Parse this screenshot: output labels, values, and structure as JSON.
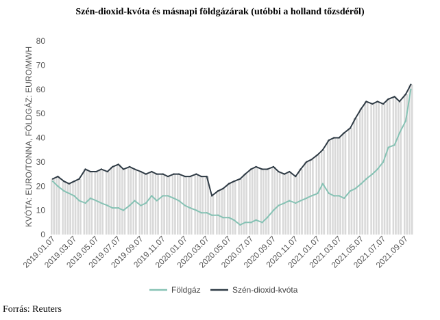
{
  "title": "Szén-dioxid-kvóta és másnapi földgázárak (utóbbi a holland tőzsdéről)",
  "source": "Forrás: Reuters",
  "chart_data": {
    "type": "line",
    "title": "Szén-dioxid-kvóta és másnapi földgázárak (utóbbi a holland tőzsdéről)",
    "ylabel": "KVÓTA: EURO/TONNA, FÖLDGÁZ: EURO/MWH",
    "xlabel": "",
    "ylim": [
      0,
      80
    ],
    "yticks": [
      "0",
      "10",
      "20",
      "30",
      "40",
      "50",
      "60",
      "70",
      "80"
    ],
    "xticks": [
      "2019.01.07",
      "2019.03.07",
      "2019.05.07",
      "2019.07.07",
      "2019.09.07",
      "2019.11.07",
      "2020.01.07",
      "2020.03.07",
      "2020.05.07",
      "2020.07.07",
      "2020.09.07",
      "2020.11.07",
      "2021.01.07",
      "2021.03.07",
      "2021.05.07",
      "2021.07.07",
      "2021.09.07"
    ],
    "grid": false,
    "legend_position": "bottom-center",
    "x": [
      "2019.01.07",
      "2019.01.21",
      "2019.02.07",
      "2019.02.21",
      "2019.03.07",
      "2019.03.21",
      "2019.04.07",
      "2019.04.21",
      "2019.05.07",
      "2019.05.21",
      "2019.06.07",
      "2019.06.21",
      "2019.07.07",
      "2019.07.21",
      "2019.08.07",
      "2019.08.21",
      "2019.09.07",
      "2019.09.21",
      "2019.10.07",
      "2019.10.21",
      "2019.11.07",
      "2019.11.21",
      "2019.12.07",
      "2019.12.21",
      "2020.01.07",
      "2020.01.21",
      "2020.02.07",
      "2020.02.21",
      "2020.03.07",
      "2020.03.21",
      "2020.04.07",
      "2020.04.21",
      "2020.05.07",
      "2020.05.21",
      "2020.06.07",
      "2020.06.21",
      "2020.07.07",
      "2020.07.21",
      "2020.08.07",
      "2020.08.21",
      "2020.09.07",
      "2020.09.21",
      "2020.10.07",
      "2020.10.21",
      "2020.11.07",
      "2020.11.21",
      "2020.12.07",
      "2020.12.21",
      "2021.01.07",
      "2021.01.21",
      "2021.02.07",
      "2021.02.21",
      "2021.03.07",
      "2021.03.21",
      "2021.04.07",
      "2021.04.21",
      "2021.05.07",
      "2021.05.21",
      "2021.06.07",
      "2021.06.21",
      "2021.07.07",
      "2021.07.21",
      "2021.08.07",
      "2021.08.21",
      "2021.09.07",
      "2021.09.21"
    ],
    "series": [
      {
        "name": "Földgáz",
        "color": "#86c2b4",
        "values": [
          22,
          20,
          18,
          17,
          16,
          14,
          13,
          15,
          14,
          13,
          12,
          11,
          11,
          10,
          12,
          14,
          12,
          13,
          16,
          14,
          16,
          16,
          15,
          14,
          12,
          11,
          10,
          9,
          9,
          8,
          8,
          7,
          7,
          6,
          4,
          5,
          5,
          6,
          5,
          7,
          10,
          12,
          13,
          14,
          13,
          14,
          15,
          16,
          17,
          21,
          17,
          16,
          16,
          15,
          18,
          19,
          21,
          23,
          25,
          27,
          30,
          36,
          37,
          42,
          47,
          60
        ]
      },
      {
        "name": "Szén-dioxid-kvóta",
        "color": "#2f3b45",
        "values": [
          23,
          24,
          22,
          21,
          22,
          23,
          27,
          26,
          26,
          27,
          26,
          28,
          29,
          27,
          28,
          27,
          26,
          25,
          26,
          25,
          25,
          24,
          25,
          25,
          24,
          24,
          25,
          24,
          24,
          16,
          18,
          19,
          21,
          22,
          23,
          25,
          27,
          28,
          27,
          27,
          28,
          26,
          25,
          26,
          24,
          27,
          30,
          31,
          33,
          35,
          39,
          40,
          40,
          42,
          44,
          48,
          52,
          55,
          54,
          55,
          54,
          56,
          57,
          55,
          58,
          62
        ]
      }
    ]
  }
}
